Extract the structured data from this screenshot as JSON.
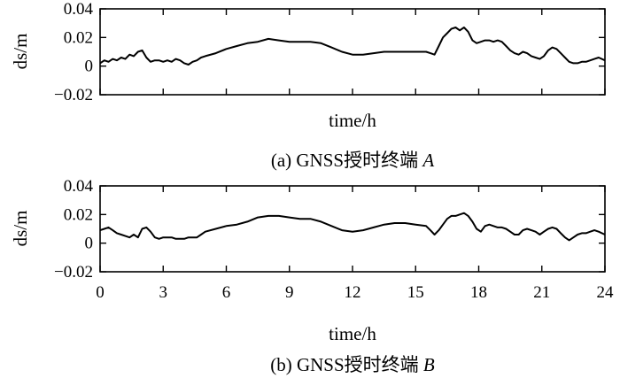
{
  "chart_data": [
    {
      "type": "line",
      "caption": "(a) GNSS授时终端 A",
      "caption_prefix": "(a) GNSS授时终端 ",
      "caption_italic": "A",
      "xlabel": "time/h",
      "ylabel": "ds/m",
      "xlim": [
        0,
        24
      ],
      "ylim": [
        -0.02,
        0.04
      ],
      "yticks": [
        -0.02,
        0,
        0.02,
        0.04
      ],
      "ytick_labels": [
        "−0.02",
        "0",
        "0.02",
        "0.04"
      ],
      "xticks": [
        0,
        3,
        6,
        9,
        12,
        15,
        18,
        21,
        24
      ],
      "xtick_labels": [],
      "series": [
        {
          "color": "#000000",
          "x": [
            0,
            0.2,
            0.4,
            0.6,
            0.8,
            1.0,
            1.2,
            1.4,
            1.6,
            1.8,
            2.0,
            2.2,
            2.4,
            2.6,
            2.8,
            3.0,
            3.2,
            3.4,
            3.6,
            3.8,
            4.0,
            4.2,
            4.4,
            4.6,
            4.8,
            5.0,
            5.5,
            6.0,
            6.5,
            7.0,
            7.5,
            8.0,
            8.5,
            9.0,
            9.5,
            10.0,
            10.5,
            11.0,
            11.5,
            12.0,
            12.5,
            13.0,
            13.5,
            14.0,
            14.5,
            15.0,
            15.5,
            15.7,
            15.9,
            16.1,
            16.3,
            16.5,
            16.7,
            16.9,
            17.1,
            17.3,
            17.5,
            17.7,
            17.9,
            18.1,
            18.3,
            18.5,
            18.7,
            18.9,
            19.1,
            19.3,
            19.5,
            19.7,
            19.9,
            20.1,
            20.3,
            20.5,
            20.7,
            20.9,
            21.1,
            21.3,
            21.5,
            21.7,
            21.9,
            22.1,
            22.3,
            22.5,
            22.7,
            22.9,
            23.1,
            23.3,
            23.5,
            23.7,
            24.0
          ],
          "y": [
            0.002,
            0.004,
            0.003,
            0.005,
            0.004,
            0.006,
            0.005,
            0.008,
            0.007,
            0.01,
            0.011,
            0.006,
            0.003,
            0.004,
            0.004,
            0.003,
            0.004,
            0.003,
            0.005,
            0.004,
            0.002,
            0.001,
            0.003,
            0.004,
            0.006,
            0.007,
            0.009,
            0.012,
            0.014,
            0.016,
            0.017,
            0.019,
            0.018,
            0.017,
            0.017,
            0.017,
            0.016,
            0.013,
            0.01,
            0.008,
            0.008,
            0.009,
            0.01,
            0.01,
            0.01,
            0.01,
            0.01,
            0.009,
            0.008,
            0.014,
            0.02,
            0.023,
            0.026,
            0.027,
            0.025,
            0.027,
            0.024,
            0.018,
            0.016,
            0.017,
            0.018,
            0.018,
            0.017,
            0.018,
            0.017,
            0.014,
            0.011,
            0.009,
            0.008,
            0.01,
            0.009,
            0.007,
            0.006,
            0.005,
            0.007,
            0.011,
            0.013,
            0.012,
            0.009,
            0.006,
            0.003,
            0.002,
            0.002,
            0.003,
            0.003,
            0.004,
            0.005,
            0.006,
            0.004
          ]
        }
      ]
    },
    {
      "type": "line",
      "caption": "(b) GNSS授时终端 B",
      "caption_prefix": "(b) GNSS授时终端 ",
      "caption_italic": "B",
      "xlabel": "time/h",
      "ylabel": "ds/m",
      "xlim": [
        0,
        24
      ],
      "ylim": [
        -0.02,
        0.04
      ],
      "yticks": [
        -0.02,
        0,
        0.02,
        0.04
      ],
      "ytick_labels": [
        "−0.02",
        "0",
        "0.02",
        "0.04"
      ],
      "xticks": [
        0,
        3,
        6,
        9,
        12,
        15,
        18,
        21,
        24
      ],
      "xtick_labels": [
        "0",
        "3",
        "6",
        "9",
        "12",
        "15",
        "18",
        "21",
        "24"
      ],
      "series": [
        {
          "color": "#000000",
          "x": [
            0,
            0.2,
            0.4,
            0.6,
            0.8,
            1.0,
            1.2,
            1.4,
            1.6,
            1.8,
            2.0,
            2.2,
            2.4,
            2.6,
            2.8,
            3.0,
            3.2,
            3.4,
            3.6,
            3.8,
            4.0,
            4.2,
            4.4,
            4.6,
            4.8,
            5.0,
            5.5,
            6.0,
            6.5,
            7.0,
            7.5,
            8.0,
            8.5,
            9.0,
            9.5,
            10.0,
            10.5,
            11.0,
            11.5,
            12.0,
            12.5,
            13.0,
            13.5,
            14.0,
            14.5,
            15.0,
            15.5,
            15.7,
            15.9,
            16.1,
            16.3,
            16.5,
            16.7,
            16.9,
            17.1,
            17.3,
            17.5,
            17.7,
            17.9,
            18.1,
            18.3,
            18.5,
            18.7,
            18.9,
            19.1,
            19.3,
            19.5,
            19.7,
            19.9,
            20.1,
            20.3,
            20.5,
            20.7,
            20.9,
            21.1,
            21.3,
            21.5,
            21.7,
            21.9,
            22.1,
            22.3,
            22.5,
            22.7,
            22.9,
            23.1,
            23.3,
            23.5,
            23.7,
            24.0
          ],
          "y": [
            0.009,
            0.01,
            0.011,
            0.009,
            0.007,
            0.006,
            0.005,
            0.004,
            0.006,
            0.004,
            0.01,
            0.011,
            0.008,
            0.004,
            0.003,
            0.004,
            0.004,
            0.004,
            0.003,
            0.003,
            0.003,
            0.004,
            0.004,
            0.004,
            0.006,
            0.008,
            0.01,
            0.012,
            0.013,
            0.015,
            0.018,
            0.019,
            0.019,
            0.018,
            0.017,
            0.017,
            0.015,
            0.012,
            0.009,
            0.008,
            0.009,
            0.011,
            0.013,
            0.014,
            0.014,
            0.013,
            0.012,
            0.009,
            0.006,
            0.009,
            0.013,
            0.017,
            0.019,
            0.019,
            0.02,
            0.021,
            0.019,
            0.015,
            0.01,
            0.008,
            0.012,
            0.013,
            0.012,
            0.011,
            0.011,
            0.01,
            0.008,
            0.006,
            0.006,
            0.009,
            0.01,
            0.009,
            0.008,
            0.006,
            0.008,
            0.01,
            0.011,
            0.01,
            0.007,
            0.004,
            0.002,
            0.004,
            0.006,
            0.007,
            0.007,
            0.008,
            0.009,
            0.008,
            0.006
          ]
        }
      ]
    }
  ]
}
